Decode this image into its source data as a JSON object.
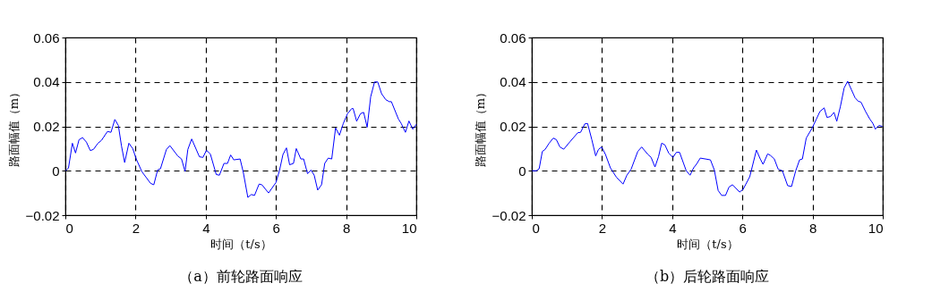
{
  "chart_data": [
    {
      "type": "line",
      "title": "（a）前轮路面响应",
      "xlabel": "时间（t/s）",
      "ylabel": "路面幅值（m）",
      "xlim": [
        0,
        10
      ],
      "xticks": [
        0,
        2,
        4,
        6,
        8,
        10
      ],
      "ylim": [
        -0.02,
        0.06
      ],
      "yticks": [
        -0.02,
        0,
        0.02,
        0.04,
        0.06
      ],
      "grid": true,
      "series": [
        {
          "color": "#0000ff",
          "x": [
            0.01,
            0.09,
            0.2,
            0.29,
            0.39,
            0.49,
            0.6,
            0.71,
            0.8,
            0.93,
            1.03,
            1.2,
            1.3,
            1.41,
            1.51,
            1.6,
            1.69,
            1.81,
            1.92,
            2.02,
            2.18,
            2.43,
            2.52,
            2.63,
            2.71,
            2.88,
            2.98,
            3.2,
            3.31,
            3.41,
            3.49,
            3.6,
            3.82,
            3.92,
            4.02,
            4.13,
            4.3,
            4.39,
            4.52,
            4.62,
            4.71,
            4.8,
            4.98,
            5.07,
            5.2,
            5.3,
            5.39,
            5.52,
            5.6,
            5.79,
            6.0,
            6.1,
            6.2,
            6.3,
            6.39,
            6.5,
            6.58,
            6.71,
            6.79,
            6.9,
            7.0,
            7.09,
            7.19,
            7.3,
            7.39,
            7.49,
            7.59,
            7.7,
            7.81,
            7.92,
            8.04,
            8.16,
            8.2,
            8.3,
            8.41,
            8.5,
            8.6,
            8.7,
            8.81,
            8.9,
            9.01,
            9.13,
            9.23,
            9.29,
            9.49,
            9.57,
            9.69,
            9.79,
            9.9,
            10.0
          ],
          "values": [
            0,
            0.0013,
            0.0124,
            0.008,
            0.014,
            0.0149,
            0.0129,
            0.0091,
            0.0096,
            0.0124,
            0.0137,
            0.0177,
            0.0173,
            0.0231,
            0.0204,
            0.0111,
            0.0037,
            0.0124,
            0.01,
            0.0053,
            -0.0004,
            -0.0057,
            -0.0063,
            0.0004,
            0.0009,
            0.0096,
            0.0113,
            0.0067,
            0.0053,
            -0.0003,
            0.0096,
            0.0143,
            0.0063,
            0.006,
            0.0092,
            0.0076,
            -0.0017,
            -0.002,
            0.0033,
            0.0033,
            0.0071,
            0.0049,
            0.0053,
            -0.0007,
            -0.012,
            -0.0107,
            -0.0111,
            -0.006,
            -0.0063,
            -0.01,
            -0.0053,
            0,
            0.0073,
            0.0103,
            0.0027,
            0.0033,
            0.01,
            0.0053,
            0.0053,
            -0.0013,
            0.0003,
            -0.002,
            -0.0087,
            -0.0063,
            0.0033,
            0.0057,
            0.0053,
            0.0193,
            0.016,
            0.0213,
            0.0257,
            0.028,
            0.028,
            0.0223,
            0.0257,
            0.0263,
            0.0196,
            0.0333,
            0.04,
            0.04,
            0.0347,
            0.032,
            0.0311,
            0.0311,
            0.0233,
            0.0213,
            0.0173,
            0.0224,
            0.0187,
            0.0209
          ]
        }
      ]
    },
    {
      "type": "line",
      "title": "（b）后轮路面响应",
      "xlabel": "时间（t/s）",
      "ylabel": "路面幅值（m）",
      "xlim": [
        0,
        10
      ],
      "xticks": [
        0,
        2,
        4,
        6,
        8,
        10
      ],
      "ylim": [
        -0.02,
        0.06
      ],
      "yticks": [
        -0.02,
        0,
        0.02,
        0.04,
        0.06
      ],
      "grid": true,
      "series": [
        {
          "color": "#0000ff",
          "x": [
            0.01,
            0.13,
            0.21,
            0.3,
            0.38,
            0.49,
            0.61,
            0.7,
            0.8,
            0.91,
            1.1,
            1.31,
            1.39,
            1.51,
            1.59,
            1.71,
            1.82,
            1.9,
            1.99,
            2.1,
            2.24,
            2.41,
            2.6,
            2.71,
            2.83,
            3.02,
            3.13,
            3.31,
            3.4,
            3.51,
            3.61,
            3.7,
            3.79,
            3.9,
            4.02,
            4.12,
            4.21,
            4.4,
            4.51,
            4.61,
            4.69,
            4.8,
            4.95,
            5.09,
            5.2,
            5.31,
            5.41,
            5.52,
            5.62,
            5.72,
            5.92,
            6.02,
            6.21,
            6.4,
            6.51,
            6.59,
            6.72,
            6.8,
            6.91,
            7.02,
            7.14,
            7.29,
            7.4,
            7.52,
            7.63,
            7.71,
            7.82,
            7.99,
            8.11,
            8.21,
            8.33,
            8.41,
            8.51,
            8.61,
            8.69,
            8.79,
            8.9,
            9.0,
            9.11,
            9.21,
            9.3,
            9.38,
            9.51,
            9.63,
            9.72,
            9.79,
            9.89,
            9.99
          ],
          "values": [
            0,
            0,
            0.0009,
            0.0087,
            0.0096,
            0.0123,
            0.0147,
            0.014,
            0.0107,
            0.0097,
            0.0133,
            0.0171,
            0.0173,
            0.0211,
            0.0213,
            0.014,
            0.0067,
            0.0096,
            0.0107,
            0.0073,
            0.0013,
            -0.0029,
            -0.006,
            -0.002,
            0.0007,
            0.0087,
            0.0107,
            0.0073,
            0.006,
            0.0017,
            0.0063,
            0.0124,
            0.0117,
            0.008,
            0.006,
            0.0083,
            0.0083,
            0,
            -0.002,
            0.0013,
            0.0029,
            0.0057,
            0.0053,
            0.0049,
            0.0004,
            -0.0089,
            -0.0111,
            -0.0111,
            -0.0073,
            -0.0063,
            -0.0096,
            -0.0084,
            -0.0027,
            0.0093,
            0.0053,
            0.0029,
            0.0076,
            0.0069,
            0.0053,
            0.0007,
            0,
            -0.0067,
            -0.0071,
            0,
            0.0049,
            0.0053,
            0.0147,
            0.0193,
            0.0233,
            0.0267,
            0.0283,
            0.024,
            0.0244,
            0.0263,
            0.0223,
            0.0287,
            0.0373,
            0.0403,
            0.0364,
            0.0329,
            0.0313,
            0.0309,
            0.0267,
            0.0233,
            0.0213,
            0.0187,
            0.0204,
            0.02
          ]
        }
      ]
    }
  ]
}
